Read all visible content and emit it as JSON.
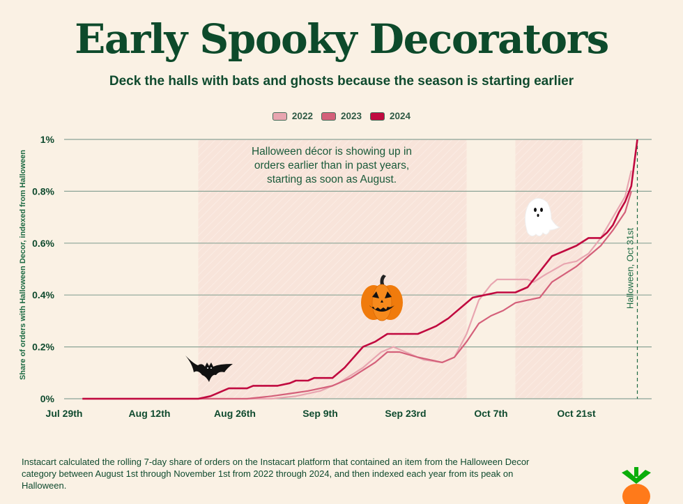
{
  "header": {
    "title": "Early Spooky Decorators",
    "subtitle": "Deck the halls with bats and ghosts because the season is starting earlier"
  },
  "footer": {
    "note": "Instacart calculated the rolling 7-day share of orders on the Instacart platform that contained an item from the Halloween Decor category between August 1st through November 1st from 2022 through 2024, and then indexed each year from its peak on Halloween."
  },
  "icons": [
    "bat-icon",
    "pumpkin-icon",
    "ghost-icon",
    "carrot-logo-icon"
  ],
  "chart_data": {
    "type": "line",
    "title": "Early Spooky Decorators",
    "xlabel": "",
    "ylabel": "Share of orders with Halloween Decor, indexed from Halloween",
    "x_ticks": [
      "Jul 29th",
      "Aug 12th",
      "Aug 26th",
      "Sep 9th",
      "Sep 23rd",
      "Oct 7th",
      "Oct 21st"
    ],
    "x_range": [
      "Jul 29",
      "Oct 31"
    ],
    "y_ticks": [
      "0%",
      "0.2%",
      "0.4%",
      "0.6%",
      "0.8%",
      "1%"
    ],
    "ylim": [
      0,
      1
    ],
    "grid": "horizontal",
    "legend": "top-center",
    "annotation": "Halloween décor is showing up in orders earlier than in past years, starting as soon as August.",
    "reference_line": {
      "x": "Oct 31",
      "label": "Halloween, Oct 31st"
    },
    "highlight_ranges": [
      [
        "Aug 20",
        "Oct 3"
      ],
      [
        "Oct 11",
        "Oct 22"
      ]
    ],
    "series": [
      {
        "name": "2022",
        "color": "#e8a5b0",
        "points": [
          [
            "Aug 1",
            0
          ],
          [
            "Sep 1",
            0
          ],
          [
            "Sep 5",
            0.01
          ],
          [
            "Sep 9",
            0.03
          ],
          [
            "Sep 12",
            0.06
          ],
          [
            "Sep 16",
            0.12
          ],
          [
            "Sep 19",
            0.18
          ],
          [
            "Sep 21",
            0.2
          ],
          [
            "Sep 23",
            0.18
          ],
          [
            "Sep 26",
            0.15
          ],
          [
            "Sep 29",
            0.14
          ],
          [
            "Oct 1",
            0.16
          ],
          [
            "Oct 3",
            0.25
          ],
          [
            "Oct 5",
            0.38
          ],
          [
            "Oct 7",
            0.44
          ],
          [
            "Oct 8",
            0.46
          ],
          [
            "Oct 13",
            0.46
          ],
          [
            "Oct 14",
            0.45
          ],
          [
            "Oct 16",
            0.48
          ],
          [
            "Oct 19",
            0.52
          ],
          [
            "Oct 21",
            0.53
          ],
          [
            "Oct 23",
            0.56
          ],
          [
            "Oct 25",
            0.62
          ],
          [
            "Oct 27",
            0.7
          ],
          [
            "Oct 29",
            0.78
          ],
          [
            "Oct 30",
            0.88
          ]
        ]
      },
      {
        "name": "2023",
        "color": "#d4607a",
        "points": [
          [
            "Aug 1",
            0
          ],
          [
            "Aug 28",
            0
          ],
          [
            "Sep 1",
            0.01
          ],
          [
            "Sep 4",
            0.02
          ],
          [
            "Sep 7",
            0.03
          ],
          [
            "Sep 11",
            0.05
          ],
          [
            "Sep 14",
            0.08
          ],
          [
            "Sep 18",
            0.14
          ],
          [
            "Sep 20",
            0.18
          ],
          [
            "Sep 22",
            0.18
          ],
          [
            "Sep 25",
            0.16
          ],
          [
            "Sep 27",
            0.15
          ],
          [
            "Sep 29",
            0.14
          ],
          [
            "Oct 1",
            0.16
          ],
          [
            "Oct 3",
            0.22
          ],
          [
            "Oct 5",
            0.29
          ],
          [
            "Oct 7",
            0.32
          ],
          [
            "Oct 9",
            0.34
          ],
          [
            "Oct 11",
            0.37
          ],
          [
            "Oct 13",
            0.38
          ],
          [
            "Oct 15",
            0.39
          ],
          [
            "Oct 17",
            0.45
          ],
          [
            "Oct 19",
            0.48
          ],
          [
            "Oct 21",
            0.51
          ],
          [
            "Oct 23",
            0.55
          ],
          [
            "Oct 25",
            0.59
          ],
          [
            "Oct 27",
            0.65
          ],
          [
            "Oct 29",
            0.72
          ],
          [
            "Oct 30",
            0.8
          ]
        ]
      },
      {
        "name": "2024",
        "color": "#c0093f",
        "points": [
          [
            "Aug 1",
            0
          ],
          [
            "Aug 20",
            0
          ],
          [
            "Aug 22",
            0.01
          ],
          [
            "Aug 25",
            0.04
          ],
          [
            "Aug 28",
            0.04
          ],
          [
            "Aug 29",
            0.05
          ],
          [
            "Sep 2",
            0.05
          ],
          [
            "Sep 4",
            0.06
          ],
          [
            "Sep 5",
            0.07
          ],
          [
            "Sep 7",
            0.07
          ],
          [
            "Sep 8",
            0.08
          ],
          [
            "Sep 11",
            0.08
          ],
          [
            "Sep 13",
            0.12
          ],
          [
            "Sep 16",
            0.2
          ],
          [
            "Sep 18",
            0.22
          ],
          [
            "Sep 20",
            0.25
          ],
          [
            "Sep 25",
            0.25
          ],
          [
            "Sep 26",
            0.26
          ],
          [
            "Sep 28",
            0.28
          ],
          [
            "Sep 30",
            0.31
          ],
          [
            "Oct 1",
            0.33
          ],
          [
            "Oct 3",
            0.37
          ],
          [
            "Oct 4",
            0.39
          ],
          [
            "Oct 6",
            0.4
          ],
          [
            "Oct 8",
            0.41
          ],
          [
            "Oct 11",
            0.41
          ],
          [
            "Oct 13",
            0.43
          ],
          [
            "Oct 15",
            0.49
          ],
          [
            "Oct 17",
            0.55
          ],
          [
            "Oct 19",
            0.57
          ],
          [
            "Oct 21",
            0.59
          ],
          [
            "Oct 23",
            0.62
          ],
          [
            "Oct 25",
            0.62
          ],
          [
            "Oct 26",
            0.64
          ],
          [
            "Oct 27",
            0.67
          ],
          [
            "Oct 28",
            0.72
          ],
          [
            "Oct 29",
            0.76
          ],
          [
            "Oct 30",
            0.82
          ],
          [
            "Oct 31",
            1.0
          ]
        ]
      }
    ]
  }
}
